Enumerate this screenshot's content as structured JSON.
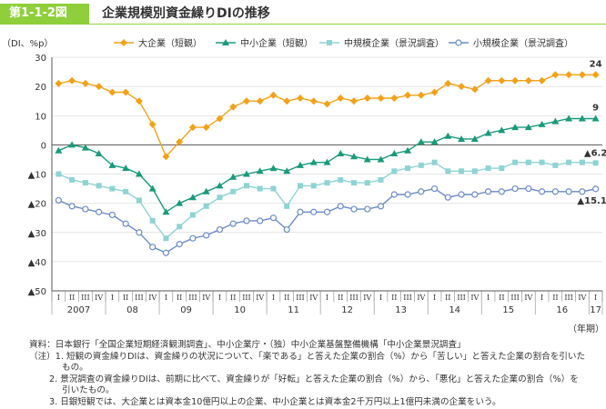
{
  "figure": {
    "number": "第1-1-2図",
    "title": "企業規模別資金繰りDIの推移"
  },
  "colors": {
    "accent": "#8fcf3b",
    "large": "#f2a21a",
    "sme": "#1a9a7a",
    "mid": "#8fd3d3",
    "small": "#6b8cc7",
    "grid": "#cccccc"
  },
  "chart_data": {
    "type": "line",
    "title": "企業規模別資金繰りDIの推移",
    "ylabel": "（DI、%p）",
    "xlabel": "（年期）",
    "ylim": [
      -50,
      30
    ],
    "yticks": [
      30,
      20,
      10,
      0,
      -10,
      -20,
      -30,
      -40,
      -50
    ],
    "ytick_labels": [
      "30",
      "20",
      "10",
      "0",
      "▲10",
      "▲20",
      "▲30",
      "▲40",
      "▲50"
    ],
    "quarter_labels": [
      "I",
      "II",
      "III",
      "IV",
      "I",
      "II",
      "III",
      "IV",
      "I",
      "II",
      "III",
      "IV",
      "I",
      "II",
      "III",
      "IV",
      "I",
      "II",
      "III",
      "IV",
      "I",
      "II",
      "III",
      "IV",
      "I",
      "II",
      "III",
      "IV",
      "I",
      "II",
      "III",
      "IV",
      "I",
      "II",
      "III",
      "IV",
      "I",
      "II",
      "III",
      "IV",
      "I"
    ],
    "year_labels": [
      {
        "label": "2007",
        "start": 0
      },
      {
        "label": "08",
        "start": 4
      },
      {
        "label": "09",
        "start": 8
      },
      {
        "label": "10",
        "start": 12
      },
      {
        "label": "11",
        "start": 16
      },
      {
        "label": "12",
        "start": 20
      },
      {
        "label": "13",
        "start": 24
      },
      {
        "label": "14",
        "start": 28
      },
      {
        "label": "15",
        "start": 32
      },
      {
        "label": "16",
        "start": 36
      },
      {
        "label": "17",
        "start": 40
      }
    ],
    "grid": true,
    "legend_position": "top",
    "series": [
      {
        "key": "large",
        "name": "大企業（短観）",
        "marker": "diamond",
        "values": [
          21,
          22,
          21,
          20,
          18,
          18,
          15,
          7,
          -4,
          1,
          6,
          6,
          9,
          13,
          15,
          15,
          17,
          15,
          16,
          15,
          14,
          16,
          15,
          16,
          16,
          16,
          17,
          17,
          18,
          21,
          20,
          19,
          22,
          22,
          22,
          22,
          22,
          24,
          24,
          24,
          24
        ],
        "end_label": "24"
      },
      {
        "key": "sme",
        "name": "中小企業（短観）",
        "marker": "triangle",
        "values": [
          -2,
          0,
          -1,
          -3,
          -7,
          -8,
          -10,
          -15,
          -23,
          -20,
          -18,
          -16,
          -14,
          -11,
          -10,
          -9,
          -8,
          -9,
          -7,
          -6,
          -6,
          -3,
          -4,
          -5,
          -5,
          -3,
          -2,
          1,
          1,
          3,
          2,
          2,
          4,
          5,
          6,
          6,
          7,
          8,
          9,
          9,
          9
        ],
        "end_label": "9"
      },
      {
        "key": "mid",
        "name": "中規模企業（景況調査）",
        "marker": "square",
        "values": [
          -10,
          -12,
          -13,
          -14,
          -15,
          -16,
          -19,
          -26,
          -32,
          -28,
          -24,
          -21,
          -18,
          -16,
          -14,
          -15,
          -15,
          -21,
          -14,
          -14,
          -13,
          -12,
          -13,
          -13,
          -12,
          -9,
          -8,
          -7,
          -6,
          -9,
          -9,
          -9,
          -8,
          -8,
          -6,
          -6,
          -6,
          -7,
          -6,
          -6,
          -6.2
        ],
        "end_label": "▲6.2"
      },
      {
        "key": "small",
        "name": "小規模企業（景況調査）",
        "marker": "circle",
        "values": [
          -19,
          -21,
          -22,
          -23,
          -24,
          -27,
          -30,
          -35,
          -37,
          -34,
          -32,
          -31,
          -29,
          -27,
          -26,
          -26,
          -25,
          -29,
          -23,
          -23,
          -23,
          -21,
          -22,
          -22,
          -21,
          -17,
          -17,
          -16,
          -15,
          -18,
          -17,
          -17,
          -16,
          -16,
          -15,
          -15,
          -16,
          -16,
          -16,
          -16,
          -15.1
        ],
        "end_label": "▲15.1"
      }
    ]
  },
  "notes": {
    "source": "資料：日本銀行「全国企業短期経済観測調査」、中小企業庁・（独）中小企業基盤整備機構「中小企業景況調査」",
    "note_head": "（注）1. 短観の資金繰りDIは、資金繰りの状況について、「楽である」と答えた企業の割合（%）から「苦しい」と答えた企業の割合を引いたもの。",
    "note1_line1": "（注）1. 短観の資金繰りDIは、資金繰りの状況について、「楽である」と答えた企業の割合（%）から「苦しい」と答えた企業の割合を引いた",
    "note1_line2": "もの。",
    "note2_line1": "2. 景況調査の資金繰りDIは、前期に比べて、資金繰りが「好転」と答えた企業の割合（%）から、「悪化」と答えた企業の割合（%）を",
    "note2_line2": "引いたもの。",
    "note3": "3. 日銀短観では、大企業とは資本金10億円以上の企業、中小企業とは資本金2千万円以上1億円未満の企業をいう。"
  }
}
